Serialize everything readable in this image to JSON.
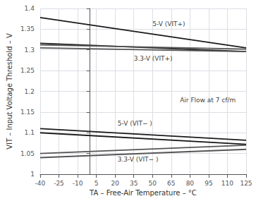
{
  "chart_data": {
    "type": "line",
    "xlabel": "TA – Free-Air Temperature – °C",
    "ylabel": "VIT – Input Voltage Threshold – V",
    "xlim": [
      -40,
      125
    ],
    "ylim": [
      1,
      1.4
    ],
    "xticks": [
      -40,
      -25,
      -10,
      5,
      20,
      35,
      50,
      65,
      80,
      95,
      110,
      125
    ],
    "yticks": [
      1,
      1.05,
      1.1,
      1.15,
      1.2,
      1.25,
      1.3,
      1.35,
      1.4
    ],
    "grid": true,
    "series": [
      {
        "color": "#1a1a1a",
        "x": [
          -40,
          125
        ],
        "values": [
          1.378,
          1.305
        ]
      },
      {
        "color": "#1a1a1a",
        "x": [
          -40,
          125
        ],
        "values": [
          1.316,
          1.296
        ]
      },
      {
        "color": "#555555",
        "x": [
          -40,
          125
        ],
        "values": [
          1.312,
          1.302
        ]
      },
      {
        "color": "#555555",
        "x": [
          -40,
          125
        ],
        "values": [
          1.305,
          1.296
        ]
      },
      {
        "color": "#1a1a1a",
        "x": [
          -40,
          125
        ],
        "values": [
          1.11,
          1.082
        ]
      },
      {
        "color": "#1a1a1a",
        "x": [
          -40,
          125
        ],
        "values": [
          1.1,
          1.072
        ]
      },
      {
        "color": "#555555",
        "x": [
          -40,
          125
        ],
        "values": [
          1.05,
          1.07
        ]
      },
      {
        "color": "#555555",
        "x": [
          -40,
          125
        ],
        "values": [
          1.04,
          1.06
        ]
      }
    ],
    "annotations": [
      {
        "text": "5-V (VIT+)",
        "x": 50,
        "y": 1.362
      },
      {
        "text": "3.3-V (VIT+)",
        "x": 35,
        "y": 1.28
      },
      {
        "text": "5-V (VIT− )",
        "x": 22,
        "y": 1.123
      },
      {
        "text": "3.3-V (VIT− )",
        "x": 22,
        "y": 1.035
      },
      {
        "text": "Air Flow at 7 cf/m",
        "x": 72,
        "y": 1.178
      }
    ]
  }
}
